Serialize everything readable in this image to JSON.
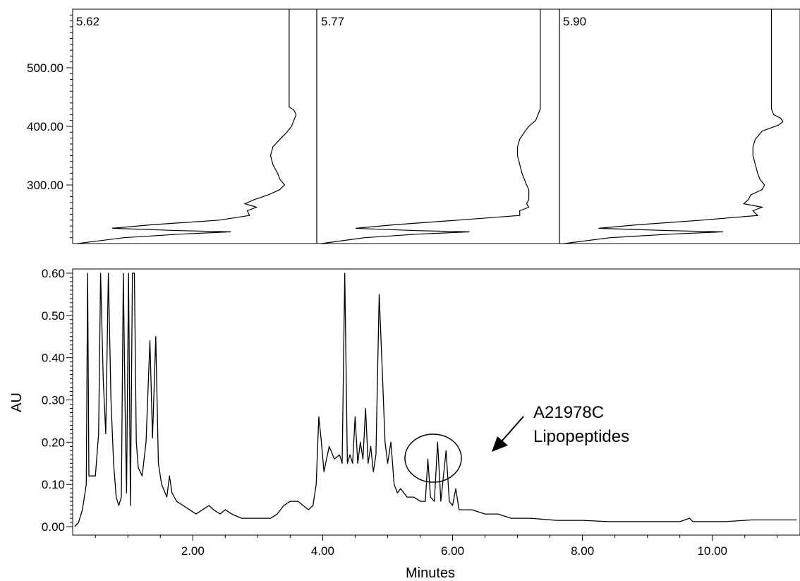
{
  "chart_data": [
    {
      "type": "line",
      "panel": "uv-spectra",
      "y_tick_labels": [
        "500.00",
        "400.00",
        "300.00"
      ],
      "y_ticks": [
        500,
        400,
        300
      ],
      "wavelength_range": [
        200,
        600
      ],
      "absorbance_range": [
        0,
        1
      ],
      "series": [
        {
          "name": "5.62",
          "points": [
            [
              200,
              0.02
            ],
            [
              210,
              0.22
            ],
            [
              216,
              0.46
            ],
            [
              220,
              0.68
            ],
            [
              222,
              0.46
            ],
            [
              226,
              0.17
            ],
            [
              232,
              0.34
            ],
            [
              240,
              0.63
            ],
            [
              248,
              0.76
            ],
            [
              256,
              0.75
            ],
            [
              262,
              0.79
            ],
            [
              268,
              0.74
            ],
            [
              275,
              0.78
            ],
            [
              283,
              0.84
            ],
            [
              292,
              0.89
            ],
            [
              300,
              0.91
            ],
            [
              310,
              0.89
            ],
            [
              320,
              0.88
            ],
            [
              335,
              0.86
            ],
            [
              350,
              0.85
            ],
            [
              365,
              0.86
            ],
            [
              378,
              0.89
            ],
            [
              390,
              0.92
            ],
            [
              400,
              0.94
            ],
            [
              410,
              0.95
            ],
            [
              420,
              0.96
            ],
            [
              428,
              0.95
            ],
            [
              433,
              0.93
            ],
            [
              438,
              0.93
            ],
            [
              500,
              0.93
            ],
            [
              600,
              0.93
            ]
          ]
        },
        {
          "name": "5.77",
          "points": [
            [
              200,
              0.02
            ],
            [
              210,
              0.21
            ],
            [
              216,
              0.44
            ],
            [
              220,
              0.67
            ],
            [
              222,
              0.44
            ],
            [
              226,
              0.17
            ],
            [
              232,
              0.34
            ],
            [
              240,
              0.62
            ],
            [
              248,
              0.89
            ],
            [
              256,
              0.89
            ],
            [
              262,
              0.93
            ],
            [
              268,
              0.92
            ],
            [
              275,
              0.93
            ],
            [
              283,
              0.93
            ],
            [
              292,
              0.93
            ],
            [
              300,
              0.92
            ],
            [
              310,
              0.91
            ],
            [
              320,
              0.9
            ],
            [
              335,
              0.89
            ],
            [
              350,
              0.88
            ],
            [
              365,
              0.88
            ],
            [
              378,
              0.89
            ],
            [
              390,
              0.91
            ],
            [
              400,
              0.93
            ],
            [
              410,
              0.96
            ],
            [
              420,
              0.97
            ],
            [
              430,
              0.98
            ],
            [
              440,
              0.98
            ],
            [
              520,
              0.98
            ],
            [
              600,
              0.98
            ]
          ]
        },
        {
          "name": "5.90",
          "points": [
            [
              200,
              0.02
            ],
            [
              210,
              0.22
            ],
            [
              216,
              0.48
            ],
            [
              220,
              0.71
            ],
            [
              222,
              0.48
            ],
            [
              226,
              0.17
            ],
            [
              232,
              0.34
            ],
            [
              240,
              0.62
            ],
            [
              248,
              0.86
            ],
            [
              256,
              0.84
            ],
            [
              262,
              0.88
            ],
            [
              268,
              0.8
            ],
            [
              275,
              0.82
            ],
            [
              283,
              0.83
            ],
            [
              292,
              0.88
            ],
            [
              300,
              0.89
            ],
            [
              310,
              0.87
            ],
            [
              320,
              0.86
            ],
            [
              335,
              0.85
            ],
            [
              350,
              0.84
            ],
            [
              365,
              0.84
            ],
            [
              378,
              0.85
            ],
            [
              392,
              0.88
            ],
            [
              402,
              0.95
            ],
            [
              408,
              0.97
            ],
            [
              414,
              0.96
            ],
            [
              420,
              0.93
            ],
            [
              430,
              0.92
            ],
            [
              440,
              0.92
            ],
            [
              520,
              0.92
            ],
            [
              600,
              0.92
            ]
          ]
        }
      ]
    },
    {
      "type": "line",
      "panel": "chromatogram",
      "xlabel": "Minutes",
      "ylabel": "AU",
      "xlim": [
        0.15,
        11.35
      ],
      "ylim": [
        -0.02,
        0.61
      ],
      "x_ticks": [
        2,
        4,
        6,
        8,
        10
      ],
      "x_tick_labels": [
        "2.00",
        "4.00",
        "6.00",
        "8.00",
        "10.00"
      ],
      "y_ticks": [
        0.0,
        0.1,
        0.2,
        0.3,
        0.4,
        0.5,
        0.6
      ],
      "y_tick_labels": [
        "0.00",
        "0.10",
        "0.20",
        "0.30",
        "0.40",
        "0.50",
        "0.60"
      ],
      "series": [
        {
          "points": [
            [
              0.18,
              0.0
            ],
            [
              0.24,
              0.01
            ],
            [
              0.3,
              0.04
            ],
            [
              0.36,
              0.1
            ],
            [
              0.38,
              0.6
            ],
            [
              0.4,
              0.12
            ],
            [
              0.5,
              0.12
            ],
            [
              0.55,
              0.22
            ],
            [
              0.58,
              0.6
            ],
            [
              0.62,
              0.35
            ],
            [
              0.66,
              0.22
            ],
            [
              0.7,
              0.6
            ],
            [
              0.74,
              0.3
            ],
            [
              0.78,
              0.15
            ],
            [
              0.82,
              0.07
            ],
            [
              0.86,
              0.05
            ],
            [
              0.9,
              0.07
            ],
            [
              0.93,
              0.6
            ],
            [
              0.96,
              0.25
            ],
            [
              0.98,
              0.08
            ],
            [
              1.01,
              0.6
            ],
            [
              1.04,
              0.05
            ],
            [
              1.07,
              0.6
            ],
            [
              1.1,
              0.6
            ],
            [
              1.13,
              0.2
            ],
            [
              1.16,
              0.14
            ],
            [
              1.22,
              0.12
            ],
            [
              1.28,
              0.2
            ],
            [
              1.34,
              0.44
            ],
            [
              1.38,
              0.21
            ],
            [
              1.43,
              0.45
            ],
            [
              1.47,
              0.15
            ],
            [
              1.52,
              0.1
            ],
            [
              1.6,
              0.07
            ],
            [
              1.64,
              0.12
            ],
            [
              1.68,
              0.08
            ],
            [
              1.75,
              0.06
            ],
            [
              1.85,
              0.05
            ],
            [
              1.95,
              0.04
            ],
            [
              2.05,
              0.03
            ],
            [
              2.15,
              0.04
            ],
            [
              2.25,
              0.05
            ],
            [
              2.32,
              0.04
            ],
            [
              2.42,
              0.03
            ],
            [
              2.5,
              0.04
            ],
            [
              2.6,
              0.03
            ],
            [
              2.75,
              0.02
            ],
            [
              3.0,
              0.02
            ],
            [
              3.2,
              0.02
            ],
            [
              3.3,
              0.03
            ],
            [
              3.4,
              0.05
            ],
            [
              3.5,
              0.06
            ],
            [
              3.62,
              0.06
            ],
            [
              3.7,
              0.05
            ],
            [
              3.78,
              0.04
            ],
            [
              3.85,
              0.05
            ],
            [
              3.9,
              0.1
            ],
            [
              3.94,
              0.26
            ],
            [
              3.98,
              0.2
            ],
            [
              4.02,
              0.13
            ],
            [
              4.1,
              0.19
            ],
            [
              4.18,
              0.16
            ],
            [
              4.26,
              0.17
            ],
            [
              4.3,
              0.15
            ],
            [
              4.34,
              0.6
            ],
            [
              4.38,
              0.15
            ],
            [
              4.42,
              0.17
            ],
            [
              4.46,
              0.15
            ],
            [
              4.5,
              0.26
            ],
            [
              4.54,
              0.15
            ],
            [
              4.58,
              0.2
            ],
            [
              4.62,
              0.16
            ],
            [
              4.66,
              0.28
            ],
            [
              4.7,
              0.15
            ],
            [
              4.74,
              0.19
            ],
            [
              4.78,
              0.13
            ],
            [
              4.82,
              0.17
            ],
            [
              4.87,
              0.55
            ],
            [
              4.92,
              0.36
            ],
            [
              4.96,
              0.2
            ],
            [
              5.0,
              0.15
            ],
            [
              5.05,
              0.2
            ],
            [
              5.1,
              0.1
            ],
            [
              5.15,
              0.08
            ],
            [
              5.2,
              0.09
            ],
            [
              5.3,
              0.07
            ],
            [
              5.4,
              0.07
            ],
            [
              5.5,
              0.06
            ],
            [
              5.58,
              0.06
            ],
            [
              5.62,
              0.16
            ],
            [
              5.66,
              0.07
            ],
            [
              5.72,
              0.06
            ],
            [
              5.77,
              0.2
            ],
            [
              5.82,
              0.06
            ],
            [
              5.9,
              0.18
            ],
            [
              5.95,
              0.06
            ],
            [
              6.0,
              0.05
            ],
            [
              6.05,
              0.09
            ],
            [
              6.1,
              0.04
            ],
            [
              6.3,
              0.04
            ],
            [
              6.5,
              0.03
            ],
            [
              6.7,
              0.03
            ],
            [
              6.9,
              0.02
            ],
            [
              7.2,
              0.02
            ],
            [
              7.6,
              0.015
            ],
            [
              8.0,
              0.015
            ],
            [
              8.4,
              0.012
            ],
            [
              9.0,
              0.012
            ],
            [
              9.5,
              0.012
            ],
            [
              9.65,
              0.02
            ],
            [
              9.7,
              0.012
            ],
            [
              10.2,
              0.012
            ],
            [
              10.6,
              0.016
            ],
            [
              11.3,
              0.016
            ]
          ]
        }
      ],
      "annotation": {
        "line1": "A21978C",
        "line2": "Lipopeptides",
        "target_x": 5.77,
        "target_y": 0.155
      }
    }
  ]
}
